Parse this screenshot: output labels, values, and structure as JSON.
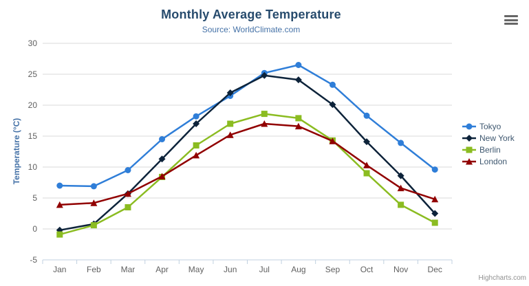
{
  "header": {
    "title": "Monthly Average Temperature",
    "subtitle": "Source: WorldClimate.com"
  },
  "toolbar": {
    "context_menu_icon": "hamburger-icon"
  },
  "credits": {
    "label": "Highcharts.com"
  },
  "colors": {
    "title": "#274b6d",
    "subtitle": "#4572a7",
    "axis_title": "#4572a7",
    "tick_label": "#606060",
    "gridline": "#d8d8d8",
    "axis_line": "#c0d0e0",
    "legend_text": "#3e576f",
    "credit": "#909090"
  },
  "chart_data": {
    "type": "line",
    "title": "Monthly Average Temperature",
    "subtitle": "Source: WorldClimate.com",
    "categories": [
      "Jan",
      "Feb",
      "Mar",
      "Apr",
      "May",
      "Jun",
      "Jul",
      "Aug",
      "Sep",
      "Oct",
      "Nov",
      "Dec"
    ],
    "xlabel": "",
    "ylabel": "Temperature (°C)",
    "ylim": [
      -5,
      30
    ],
    "ytick_step": 5,
    "grid": true,
    "legend_position": "right",
    "series": [
      {
        "name": "Tokyo",
        "color": "#2f7ed8",
        "marker": "circle",
        "values": [
          7.0,
          6.9,
          9.5,
          14.5,
          18.2,
          21.5,
          25.2,
          26.5,
          23.3,
          18.3,
          13.9,
          9.6
        ]
      },
      {
        "name": "New York",
        "color": "#0d233a",
        "marker": "diamond",
        "values": [
          -0.2,
          0.8,
          5.7,
          11.3,
          17.0,
          22.0,
          24.8,
          24.1,
          20.1,
          14.1,
          8.6,
          2.5
        ]
      },
      {
        "name": "Berlin",
        "color": "#8bbc21",
        "marker": "square",
        "values": [
          -0.9,
          0.6,
          3.5,
          8.4,
          13.5,
          17.0,
          18.6,
          17.9,
          14.3,
          9.0,
          3.9,
          1.0
        ]
      },
      {
        "name": "London",
        "color": "#910000",
        "marker": "triangle",
        "values": [
          3.9,
          4.2,
          5.7,
          8.5,
          11.9,
          15.2,
          17.0,
          16.6,
          14.2,
          10.3,
          6.6,
          4.8
        ]
      }
    ]
  }
}
